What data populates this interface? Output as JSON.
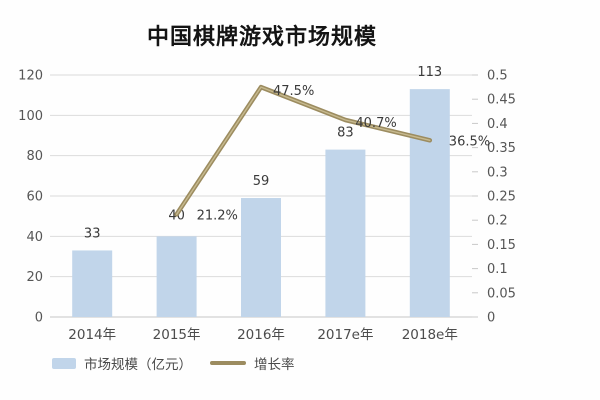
{
  "chart_data": {
    "type": "bar",
    "title": "中国棋牌游戏市场规模",
    "categories": [
      "2014年",
      "2015年",
      "2016年",
      "2017e年",
      "2018e年"
    ],
    "series": [
      {
        "name": "市场规模（亿元）",
        "type": "bar",
        "axis": "left",
        "values": [
          33,
          40,
          59,
          83,
          113
        ],
        "labels": [
          "33",
          "40",
          "59",
          "83",
          "113"
        ],
        "color": "#c1d5ea"
      },
      {
        "name": "增长率",
        "type": "line",
        "axis": "right",
        "values": [
          null,
          0.212,
          0.475,
          0.407,
          0.365
        ],
        "labels": [
          "",
          "21.2%",
          "47.5%",
          "40.7%",
          "36.5%"
        ],
        "color": "#9c8c60"
      }
    ],
    "left_axis": {
      "min": 0,
      "max": 120,
      "step": 20,
      "ticks": [
        "0",
        "20",
        "40",
        "60",
        "80",
        "100",
        "120"
      ]
    },
    "right_axis": {
      "min": 0,
      "max": 0.5,
      "step": 0.05,
      "ticks": [
        "0",
        "0.05",
        "0.1",
        "0.15",
        "0.2",
        "0.25",
        "0.3",
        "0.35",
        "0.4",
        "0.45",
        "0.5"
      ]
    },
    "legend": {
      "position": "bottom-left",
      "items": [
        "市场规模（亿元）",
        "增长率"
      ]
    },
    "grid": true,
    "colors": {
      "bar": "#c1d5ea",
      "line": "#9c8c60",
      "line_highlight": "#cfc298",
      "gridline": "#dbdbdb",
      "baseline": "#c6c6c6",
      "axis_text": "#565656",
      "background": "#fefefe"
    }
  }
}
